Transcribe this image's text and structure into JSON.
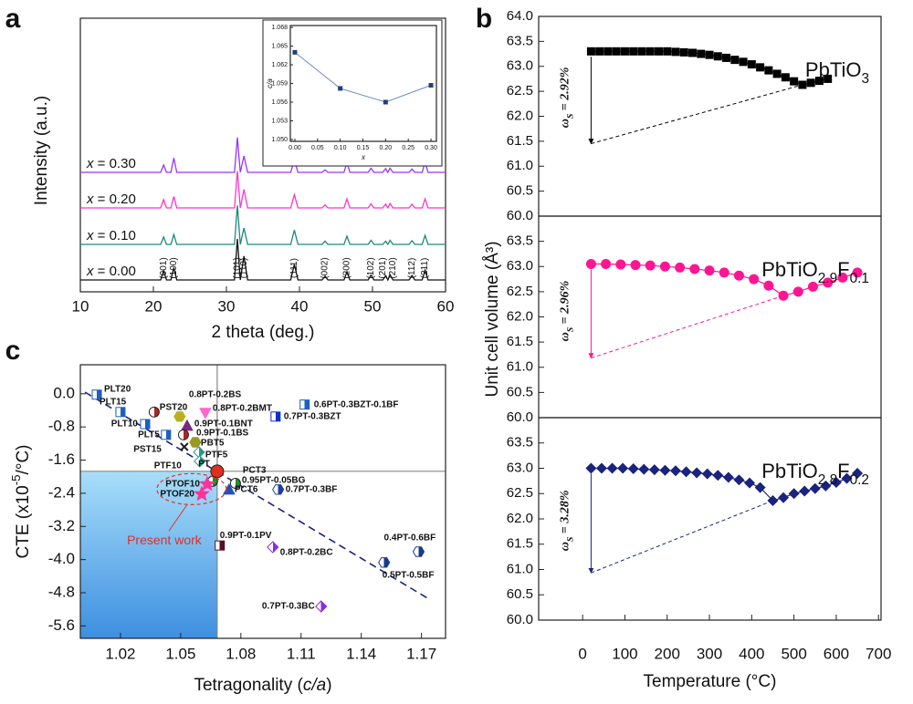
{
  "chart_data": [
    {
      "panel": "a",
      "type": "line",
      "xlabel": "2 theta (deg.)",
      "ylabel": "Intensity (a.u.)",
      "xlim": [
        10,
        60
      ],
      "xticks": [
        10,
        20,
        30,
        40,
        50,
        60
      ],
      "x": [
        10,
        20,
        21,
        21.4,
        21.8,
        22.4,
        22.8,
        23.2,
        30.8,
        31.1,
        31.5,
        31.9,
        32.4,
        32.9,
        38.8,
        39.3,
        39.8,
        43.1,
        43.5,
        43.9,
        46.1,
        46.5,
        46.9,
        49.4,
        49.8,
        50.2,
        51.4,
        51.8,
        52.1,
        52.4,
        52.8,
        55,
        55.4,
        55.8,
        56.8,
        57.2,
        57.6,
        60
      ],
      "series": [
        {
          "name": "x = 0.00",
          "color": "#111111",
          "values": [
            0,
            0,
            0,
            22,
            0,
            0,
            30,
            0,
            0,
            0,
            100,
            0,
            58,
            0,
            0,
            38,
            0,
            0,
            9,
            0,
            0,
            20,
            0,
            0,
            12,
            0,
            0,
            10,
            0,
            13,
            0,
            0,
            11,
            0,
            0,
            24,
            0,
            0
          ]
        },
        {
          "name": "x = 0.10",
          "color": "#1a8a78",
          "values": [
            0,
            0,
            0,
            18,
            0,
            0,
            24,
            0,
            0,
            0,
            95,
            0,
            40,
            0,
            0,
            35,
            0,
            0,
            8,
            0,
            0,
            20,
            0,
            0,
            10,
            0,
            0,
            8,
            0,
            10,
            0,
            0,
            9,
            0,
            0,
            22,
            0,
            0
          ]
        },
        {
          "name": "x = 0.20",
          "color": "#ff33cc",
          "values": [
            0,
            0,
            0,
            20,
            0,
            0,
            28,
            0,
            0,
            0,
            90,
            0,
            45,
            0,
            0,
            32,
            0,
            0,
            7,
            0,
            0,
            22,
            0,
            0,
            10,
            0,
            0,
            9,
            0,
            11,
            0,
            0,
            9,
            0,
            0,
            22,
            0,
            0
          ]
        },
        {
          "name": "x = 0.30",
          "color": "#9933ff",
          "values": [
            0,
            0,
            0,
            18,
            0,
            0,
            35,
            0,
            0,
            0,
            85,
            0,
            40,
            0,
            0,
            30,
            0,
            0,
            6,
            0,
            0,
            24,
            0,
            0,
            10,
            0,
            0,
            9,
            0,
            10,
            0,
            0,
            8,
            0,
            0,
            25,
            0,
            0
          ]
        }
      ],
      "annotations": [
        {
          "text": "(001)",
          "x": 21.4
        },
        {
          "text": "(100)",
          "x": 22.8
        },
        {
          "text": "(101)",
          "x": 31.5
        },
        {
          "text": "(110)",
          "x": 32.4
        },
        {
          "text": "(111)",
          "x": 39.3
        },
        {
          "text": "(002)",
          "x": 43.5
        },
        {
          "text": "(200)",
          "x": 46.5
        },
        {
          "text": "(102)",
          "x": 49.8
        },
        {
          "text": "(201)",
          "x": 51.8
        },
        {
          "text": "(210)",
          "x": 52.4
        },
        {
          "text": "(112)",
          "x": 55.4
        },
        {
          "text": "(211)",
          "x": 57.2
        }
      ]
    },
    {
      "type": "line",
      "xlabel": "x",
      "ylabel": "c/a",
      "color": "#1f3f7a",
      "x": [
        0,
        0.1,
        0.2,
        0.3
      ],
      "values": [
        1.064,
        1.0582,
        1.056,
        1.0587
      ],
      "xlim": [
        -0.01,
        0.312
      ],
      "ylim": [
        1.0497,
        1.0683
      ],
      "xticks": [
        {
          "value": 0,
          "label": "0.00"
        },
        0.05,
        {
          "value": 0.1,
          "label": "0.10"
        },
        0.15,
        {
          "value": 0.2,
          "label": "0.20"
        },
        0.25,
        {
          "value": 0.3,
          "label": "0.30"
        }
      ],
      "yticks": [
        {
          "value": 1.05,
          "label": "1.050"
        },
        1.053,
        1.056,
        1.059,
        1.062,
        1.065,
        1.068
      ]
    },
    {
      "panel": "b",
      "type": "line",
      "marker": "square",
      "xlim": [
        -104,
        706
      ],
      "ylim": [
        60,
        64
      ],
      "yticks": [
        {
          "value": 60,
          "label": "60.0"
        },
        60.5,
        {
          "value": 61,
          "label": "61.0"
        },
        61.5,
        {
          "value": 62,
          "label": "62.0"
        },
        62.5,
        {
          "value": 63,
          "label": "63.0"
        },
        63.5,
        {
          "value": 64,
          "label": "64.0"
        }
      ],
      "x": [
        20,
        40,
        60,
        80,
        100,
        120,
        140,
        160,
        180,
        200,
        220,
        240,
        260,
        280,
        300,
        320,
        340,
        360,
        380,
        400,
        420,
        440,
        460,
        480,
        500,
        520,
        540,
        560,
        580
      ],
      "series": [
        {
          "name": "PbTiO3",
          "color": "#000000",
          "values": [
            63.3,
            63.3,
            63.3,
            63.3,
            63.3,
            63.3,
            63.3,
            63.3,
            63.3,
            63.3,
            63.29,
            63.28,
            63.27,
            63.25,
            63.23,
            63.2,
            63.17,
            63.13,
            63.09,
            63.04,
            62.98,
            62.92,
            62.85,
            62.78,
            62.7,
            62.63,
            62.67,
            62.71,
            62.75
          ]
        }
      ],
      "annotations": [
        {
          "value": 2.92,
          "label": "ωS = 2.92%"
        }
      ]
    },
    {
      "type": "line",
      "marker": "circle",
      "ylabel": "Unit cell volume (Å³)",
      "xlim": [
        -104,
        706
      ],
      "ylim": [
        60,
        64
      ],
      "yticks": [
        {
          "value": 60,
          "label": "60.0"
        },
        60.5,
        {
          "value": 61,
          "label": "61.0"
        },
        61.5,
        {
          "value": 62,
          "label": "62.0"
        },
        62.5,
        {
          "value": 63,
          "label": "63.0"
        },
        63.5
      ],
      "x": [
        20,
        55,
        90,
        125,
        160,
        195,
        230,
        265,
        300,
        335,
        370,
        405,
        440,
        475,
        510,
        545,
        580,
        615,
        650
      ],
      "series": [
        {
          "name": "PbTiO2.9F0.1",
          "color": "#ff1493",
          "values": [
            63.05,
            63.05,
            63.04,
            63.03,
            63.02,
            63.0,
            62.98,
            62.95,
            62.92,
            62.88,
            62.82,
            62.75,
            62.62,
            62.42,
            62.5,
            62.6,
            62.68,
            62.78,
            62.88
          ]
        }
      ],
      "annotations": [
        {
          "value": 2.96,
          "label": "ωS = 2.96%"
        }
      ]
    },
    {
      "type": "line",
      "marker": "diamond",
      "xlabel": "Temperature (°C)",
      "xlim": [
        -104,
        706
      ],
      "ylim": [
        60,
        64
      ],
      "xticks": [
        0,
        100,
        200,
        300,
        400,
        500,
        600,
        700
      ],
      "yticks": [
        {
          "value": 60,
          "label": "60.0"
        },
        60.5,
        {
          "value": 61,
          "label": "61.0"
        },
        61.5,
        {
          "value": 62,
          "label": "62.0"
        },
        62.5,
        {
          "value": 63,
          "label": "63.0"
        },
        63.5
      ],
      "x": [
        20,
        45,
        70,
        95,
        120,
        145,
        170,
        195,
        220,
        245,
        270,
        295,
        320,
        345,
        370,
        395,
        420,
        450,
        475,
        500,
        525,
        550,
        575,
        600,
        625,
        650
      ],
      "series": [
        {
          "name": "PbTiO2.8F0.2",
          "color": "#1a237e",
          "values": [
            63.0,
            63.0,
            63.0,
            63.0,
            62.99,
            62.98,
            62.97,
            62.96,
            62.95,
            62.93,
            62.91,
            62.89,
            62.86,
            62.82,
            62.77,
            62.71,
            62.62,
            62.36,
            62.42,
            62.5,
            62.55,
            62.6,
            62.65,
            62.72,
            62.8,
            62.9
          ]
        }
      ],
      "annotations": [
        {
          "value": 3.28,
          "label": "ωS = 3.28%"
        }
      ]
    },
    {
      "panel": "c",
      "type": "scatter",
      "xlabel": "Tetragonality (c/a)",
      "ylabel": "CTE (x10-5/°C)",
      "xlim": [
        1.0,
        1.182
      ],
      "ylim": [
        -5.9,
        0.7
      ],
      "xticks": [
        1.02,
        1.05,
        1.08,
        1.11,
        1.14,
        1.17
      ],
      "yticks": [
        {
          "value": 0,
          "label": "0.0"
        },
        -0.8,
        -1.6,
        -2.4,
        -3.2,
        {
          "value": -4,
          "label": "-4.0"
        },
        -4.8,
        -5.6
      ],
      "trend_line": {
        "x": [
          1.0023,
          1.174
        ],
        "y": [
          0.04,
          -4.96
        ],
        "color": "#1a237e"
      },
      "annotation": "Present work",
      "points": [
        {
          "label": "PLT20",
          "x": 1.0082,
          "y": -0.02,
          "color": "#1f5fbf",
          "marker": "square-half"
        },
        {
          "label": "PLT15",
          "x": 1.02,
          "y": -0.44,
          "color": "#1f5fbf",
          "marker": "square-half"
        },
        {
          "label": "PLT10",
          "x": 1.0323,
          "y": -0.73,
          "color": "#1f5fbf",
          "marker": "square-half"
        },
        {
          "label": "PLT5",
          "x": 1.0427,
          "y": -0.99,
          "color": "#1f5fbf",
          "marker": "square-half"
        },
        {
          "label": "0.8PT-0.2BS",
          "x": 1.0368,
          "y": -0.44,
          "color": "#b22222",
          "marker": "circle-half"
        },
        {
          "label": "PST20",
          "x": 1.0495,
          "y": -0.55,
          "color": "#b8b020",
          "marker": "hexagon"
        },
        {
          "label": "0.8PT-0.2BMT",
          "x": 1.0623,
          "y": -0.46,
          "color": "#ff66cc",
          "marker": "triangle-down"
        },
        {
          "label": "0.9PT-0.1BNT",
          "x": 1.0532,
          "y": -0.77,
          "color": "#7a2a7a",
          "marker": "triangle-up"
        },
        {
          "label": "0.9PT-0.1BS",
          "x": 1.0514,
          "y": -0.99,
          "color": "#b22222",
          "marker": "circle-half"
        },
        {
          "label": "PBT5",
          "x": 1.0573,
          "y": -1.17,
          "color": "#9a9a20",
          "marker": "hexagon"
        },
        {
          "label": "PST15",
          "x": 1.0518,
          "y": -1.28,
          "color": "#222222",
          "marker": "cross"
        },
        {
          "label": "PTF5",
          "x": 1.0591,
          "y": -1.41,
          "color": "#2a9a8a",
          "marker": "diamond-half"
        },
        {
          "label": "PTF10",
          "x": 1.0595,
          "y": -1.63,
          "color": "#2a9a8a",
          "marker": "diamond-half"
        },
        {
          "label": "PT",
          "x": 1.0682,
          "y": -1.87,
          "color": "#e03020",
          "marker": "circle"
        },
        {
          "label": "PCT3",
          "x": 1.0659,
          "y": -2.11,
          "color": "#2a8a2a",
          "marker": "circle-half"
        },
        {
          "label": "0.95PT-0.05BG",
          "x": 1.0773,
          "y": -2.16,
          "color": "#2a8a2a",
          "marker": "circle-half"
        },
        {
          "label": "PCT6",
          "x": 1.0741,
          "y": -2.31,
          "color": "#2050c0",
          "marker": "triangle-up"
        },
        {
          "label": "0.7PT-0.3BF",
          "x": 1.0986,
          "y": -2.31,
          "color": "#2040a0",
          "marker": "hexagon-half"
        },
        {
          "label": "PTOF10",
          "x": 1.0632,
          "y": -2.18,
          "color": "#ff3399",
          "marker": "star"
        },
        {
          "label": "PTOF20",
          "x": 1.0605,
          "y": -2.42,
          "color": "#ff3399",
          "marker": "star"
        },
        {
          "label": "0.6PT-0.3BZT-0.1BF",
          "x": 1.1118,
          "y": -0.26,
          "color": "#1f5fbf",
          "marker": "square-half"
        },
        {
          "label": "0.7PT-0.3BZT",
          "x": 1.0973,
          "y": -0.55,
          "color": "#1030c0",
          "marker": "square-half"
        },
        {
          "label": "0.9PT-0.1PV",
          "x": 1.0695,
          "y": -3.66,
          "color": "#5a1020",
          "marker": "square-half"
        },
        {
          "label": "0.8PT-0.2BC",
          "x": 1.0959,
          "y": -3.7,
          "color": "#8a2be2",
          "marker": "diamond-half"
        },
        {
          "label": "0.4PT-0.6BF",
          "x": 1.1686,
          "y": -3.81,
          "color": "#1a3a8a",
          "marker": "hexagon-half"
        },
        {
          "label": "0.5PT-0.5BF",
          "x": 1.1514,
          "y": -4.07,
          "color": "#1a3a8a",
          "marker": "hexagon-half"
        },
        {
          "label": "0.7PT-0.3BC",
          "x": 1.12,
          "y": -5.13,
          "color": "#8a2be2",
          "marker": "diamond-half"
        }
      ]
    }
  ]
}
